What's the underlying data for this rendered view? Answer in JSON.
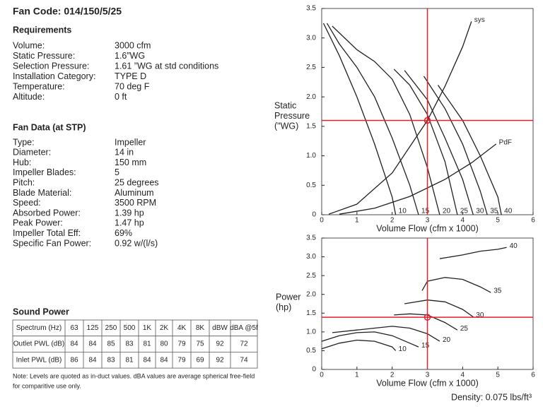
{
  "header": {
    "title": "Fan Code: 014/150/5/25"
  },
  "requirements": {
    "heading": "Requirements",
    "rows": [
      [
        "Volume:",
        "3000 cfm"
      ],
      [
        "Static Pressure:",
        "1.6”WG"
      ],
      [
        "Selection Pressure:",
        "1.61 ”WG at std conditions"
      ],
      [
        "Installation Category:",
        "TYPE D"
      ],
      [
        "Temperature:",
        "70 deg F"
      ],
      [
        "Altitude:",
        "0 ft"
      ]
    ]
  },
  "fan_data": {
    "heading": "Fan Data (at STP)",
    "rows": [
      [
        "Type:",
        "Impeller"
      ],
      [
        "Diameter:",
        "14 in"
      ],
      [
        "Hub:",
        "150 mm"
      ],
      [
        "Impeller Blades:",
        "5"
      ],
      [
        "Pitch:",
        "25 degrees"
      ],
      [
        "Blade Material:",
        "Aluminum"
      ],
      [
        "Speed:",
        "3500 RPM"
      ],
      [
        "Absorbed Power:",
        "1.39 hp"
      ],
      [
        "Peak Power:",
        "1.47 hp"
      ],
      [
        "Impeller Total Eff:",
        "69%"
      ],
      [
        "Specific Fan Power:",
        "0.92 w/(l/s)"
      ]
    ]
  },
  "sound_power": {
    "heading": "Sound Power",
    "table": {
      "header": [
        "Spectrum (Hz)",
        "63",
        "125",
        "250",
        "500",
        "1K",
        "2K",
        "4K",
        "8K",
        "dBW",
        "dBA @5f"
      ],
      "rows": [
        [
          "Outlet PWL (dB)",
          84,
          84,
          85,
          83,
          81,
          80,
          79,
          75,
          92,
          72
        ],
        [
          "Inlet PWL (dB)",
          86,
          84,
          83,
          81,
          84,
          84,
          79,
          69,
          92,
          74
        ]
      ]
    },
    "note": [
      "Note: Levels are quoted as in-duct values. dBA values are average spherical free-field",
      "for comparitive use only."
    ]
  },
  "chart_data": [
    {
      "type": "line",
      "x_label": "Volume Flow (cfm x 1000)",
      "y_label": [
        "Static",
        "Pressure",
        "(\"WG)"
      ],
      "xlim": [
        0,
        6
      ],
      "xticks": [
        0,
        1,
        2,
        3,
        4,
        5,
        6
      ],
      "ylim": [
        0,
        3.5
      ],
      "yticks": [
        0,
        0.5,
        {
          "value": 1,
          "label": "1.0"
        },
        1.5,
        {
          "value": 2,
          "label": "2.0"
        },
        2.5,
        {
          "value": 3,
          "label": "3.0"
        },
        3.5
      ],
      "line_color": "#231f20",
      "crosshair_color": "#e3202a",
      "operating_point": {
        "x": 3,
        "y": 1.6
      },
      "series": [
        {
          "name": "10",
          "x": [
            0.05,
            0.5,
            1.0,
            1.5,
            2.0,
            2.1
          ],
          "values": [
            3.25,
            2.7,
            2.0,
            1.2,
            0.3,
            0
          ]
        },
        {
          "name": "15",
          "x": [
            0.15,
            0.5,
            1.0,
            1.5,
            2.0,
            2.5,
            2.75
          ],
          "values": [
            3.25,
            2.9,
            2.5,
            2.0,
            1.3,
            0.5,
            0
          ]
        },
        {
          "name": "20",
          "x": [
            0.3,
            1.0,
            1.5,
            2.0,
            2.5,
            3.0,
            3.35
          ],
          "values": [
            3.2,
            2.8,
            2.6,
            2.3,
            1.7,
            0.8,
            0
          ]
        },
        {
          "name": "25",
          "x": [
            2.05,
            2.5,
            3.0,
            3.5,
            3.85
          ],
          "values": [
            2.47,
            2.2,
            1.7,
            0.9,
            0
          ]
        },
        {
          "name": "30",
          "x": [
            2.35,
            3.0,
            3.5,
            4.0,
            4.3
          ],
          "values": [
            2.45,
            1.95,
            1.3,
            0.6,
            0
          ]
        },
        {
          "name": "35",
          "x": [
            2.9,
            3.5,
            4.0,
            4.5,
            4.7
          ],
          "values": [
            2.35,
            1.8,
            1.2,
            0.4,
            0
          ]
        },
        {
          "name": "40",
          "x": [
            3.3,
            4.0,
            4.5,
            5.0,
            5.1
          ],
          "values": [
            2.2,
            1.6,
            1.0,
            0.3,
            0
          ]
        },
        {
          "name": "sys",
          "x": [
            0.2,
            1.0,
            2.0,
            3.0,
            3.5,
            4.0,
            4.25
          ],
          "values": [
            0.01,
            0.18,
            0.71,
            1.6,
            2.18,
            2.85,
            3.28
          ]
        },
        {
          "name": "PdF",
          "x": [
            0.5,
            1.5,
            2.5,
            3.5,
            4.25,
            4.95
          ],
          "values": [
            0.01,
            0.11,
            0.31,
            0.6,
            0.88,
            1.2
          ]
        }
      ]
    },
    {
      "type": "line",
      "x_label": "Volume Flow (cfm x 1000)",
      "y_label": [
        "Power",
        "(hp)"
      ],
      "xlim": [
        0,
        6
      ],
      "xticks": [
        0,
        1,
        2,
        3,
        4,
        5,
        6
      ],
      "ylim": [
        0,
        3.5
      ],
      "yticks": [
        0,
        0.5,
        {
          "value": 1,
          "label": "1.0"
        },
        1.5,
        {
          "value": 2,
          "label": "2.0"
        },
        2.5,
        {
          "value": 3,
          "label": "3.0"
        },
        3.5
      ],
      "line_color": "#231f20",
      "crosshair_color": "#e3202a",
      "operating_point": {
        "x": 3,
        "y": 1.39
      },
      "series": [
        {
          "name": "10",
          "x": [
            0,
            0.5,
            1.0,
            1.5,
            2.0,
            2.1
          ],
          "values": [
            0.55,
            0.7,
            0.78,
            0.75,
            0.6,
            0.5
          ]
        },
        {
          "name": "15",
          "x": [
            0,
            0.5,
            1.0,
            1.5,
            2.0,
            2.5,
            2.75
          ],
          "values": [
            0.75,
            0.9,
            0.98,
            1.0,
            0.9,
            0.7,
            0.6
          ]
        },
        {
          "name": "20",
          "x": [
            0.3,
            1.0,
            1.5,
            2.0,
            2.5,
            3.0,
            3.35
          ],
          "values": [
            0.98,
            1.05,
            1.1,
            1.15,
            1.1,
            0.95,
            0.75
          ]
        },
        {
          "name": "25",
          "x": [
            2.05,
            2.5,
            3.0,
            3.5,
            3.85
          ],
          "values": [
            1.45,
            1.48,
            1.45,
            1.25,
            1.05
          ]
        },
        {
          "name": "30",
          "x": [
            2.35,
            3.0,
            3.5,
            4.0,
            4.3
          ],
          "values": [
            1.75,
            1.85,
            1.8,
            1.6,
            1.4
          ]
        },
        {
          "name": "35",
          "x": [
            2.85,
            3.0,
            3.5,
            4.0,
            4.5,
            4.8
          ],
          "values": [
            2.1,
            2.35,
            2.45,
            2.4,
            2.2,
            2.05
          ]
        },
        {
          "name": "40",
          "x": [
            3.35,
            4.0,
            4.5,
            5.0,
            5.25
          ],
          "values": [
            2.95,
            3.05,
            3.15,
            3.2,
            3.25
          ]
        }
      ]
    }
  ],
  "density": "Density: 0.075 lbs/ft³"
}
